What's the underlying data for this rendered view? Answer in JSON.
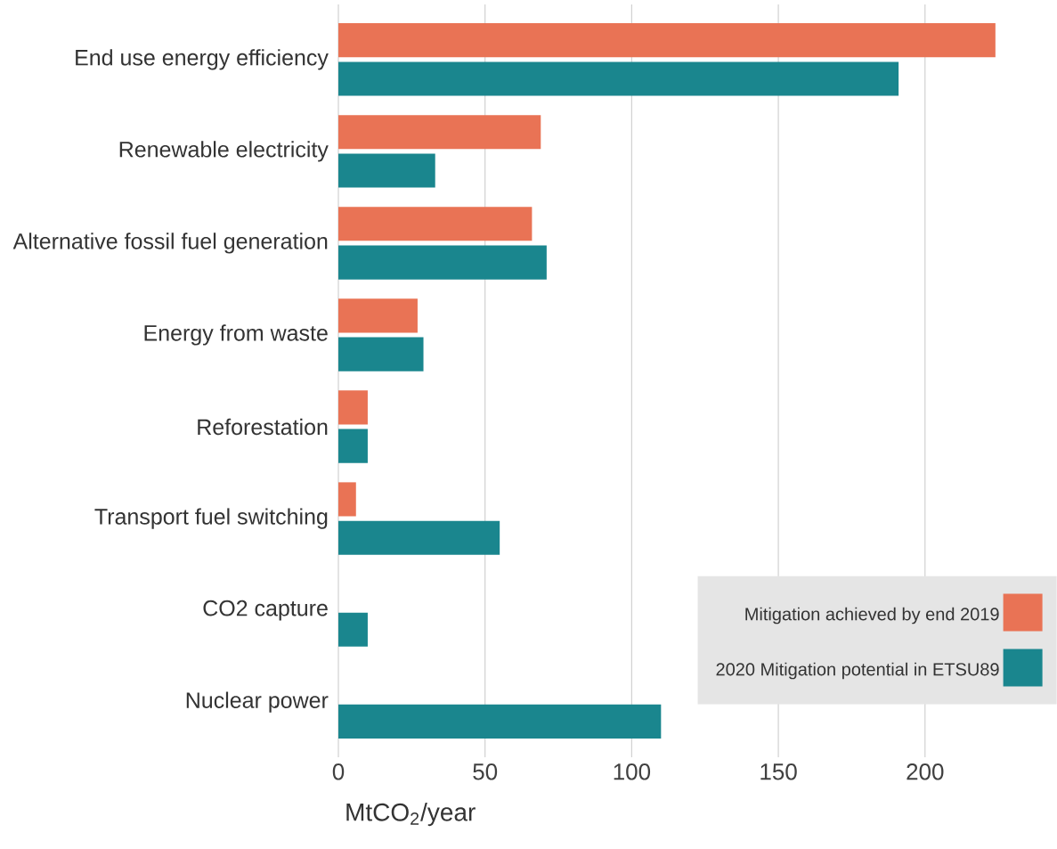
{
  "chart_data": {
    "type": "bar",
    "orientation": "horizontal",
    "categories": [
      "End use energy efficiency",
      "Renewable electricity",
      "Alternative fossil fuel generation",
      "Energy from waste",
      "Reforestation",
      "Transport fuel switching",
      "CO2 capture",
      "Nuclear power"
    ],
    "series": [
      {
        "name": "Mitigation achieved by end 2019",
        "color": "#e97355",
        "values": [
          224,
          69,
          66,
          27,
          10,
          6,
          0,
          0
        ]
      },
      {
        "name": "2020 Mitigation potential in ETSU89",
        "color": "#1a868e",
        "values": [
          191,
          33,
          71,
          29,
          10,
          55,
          10,
          110
        ]
      }
    ],
    "xlabel": "MtCO$_{2}$/year",
    "xlim": [
      0,
      245
    ],
    "xticks": [
      0,
      50,
      100,
      150,
      200
    ],
    "grid": "x",
    "legend": "bottom right"
  }
}
